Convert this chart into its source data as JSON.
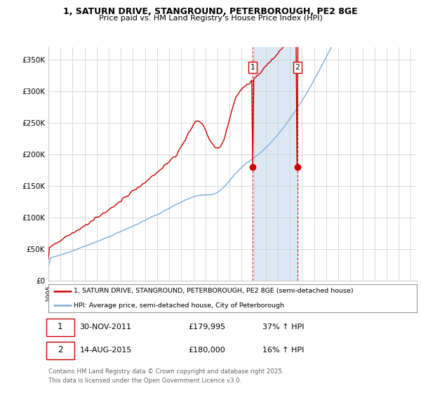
{
  "title_line1": "1, SATURN DRIVE, STANGROUND, PETERBOROUGH, PE2 8GE",
  "title_line2": "Price paid vs. HM Land Registry's House Price Index (HPI)",
  "ylabel_ticks": [
    "£0",
    "£50K",
    "£100K",
    "£150K",
    "£200K",
    "£250K",
    "£300K",
    "£350K"
  ],
  "ytick_values": [
    0,
    50000,
    100000,
    150000,
    200000,
    250000,
    300000,
    350000
  ],
  "ylim": [
    0,
    370000
  ],
  "xlim_start": 1995.0,
  "xlim_end": 2025.5,
  "legend_line1": "1, SATURN DRIVE, STANGROUND, PETERBOROUGH, PE2 8GE (semi-detached house)",
  "legend_line2": "HPI: Average price, semi-detached house, City of Peterborough",
  "sale1_date": "30-NOV-2011",
  "sale1_price": "£179,995",
  "sale1_hpi": "37% ↑ HPI",
  "sale1_label": "1",
  "sale1_x": 2011.917,
  "sale1_price_val": 179995,
  "sale2_date": "14-AUG-2015",
  "sale2_price": "£180,000",
  "sale2_hpi": "16% ↑ HPI",
  "sale2_label": "2",
  "sale2_x": 2015.617,
  "sale2_price_val": 180000,
  "line_color_red": "#cc0000",
  "line_color_blue": "#7aaddb",
  "shaded_color": "#dce9f5",
  "dashed_color": "#cc0000",
  "footer": "Contains HM Land Registry data © Crown copyright and database right 2025.\nThis data is licensed under the Open Government Licence v3.0.",
  "background_color": "#ffffff",
  "grid_color": "#cccccc"
}
